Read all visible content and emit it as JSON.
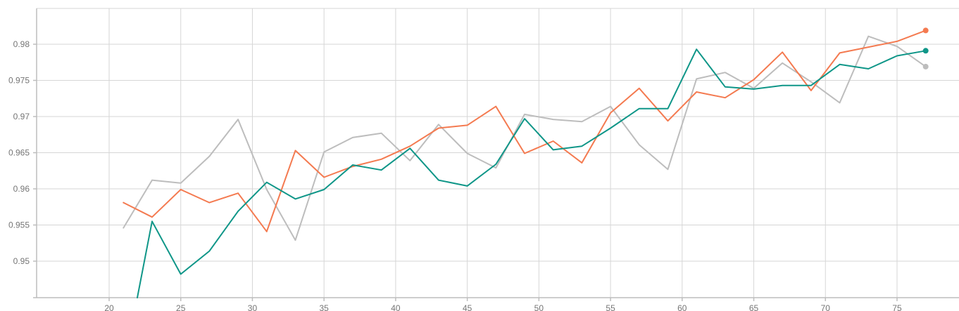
{
  "chart_data": {
    "type": "line",
    "title": "",
    "xlabel": "",
    "ylabel": "",
    "xlim": [
      15,
      79
    ],
    "ylim": [
      0.945,
      0.985
    ],
    "x_ticks": [
      "20",
      "25",
      "30",
      "35",
      "40",
      "45",
      "50",
      "55",
      "60",
      "65",
      "70",
      "75"
    ],
    "y_ticks": [
      "0.95",
      "0.955",
      "0.96",
      "0.965",
      "0.97",
      "0.975",
      "0.98"
    ],
    "grid": true,
    "legend": "none",
    "x": [
      21,
      23,
      25,
      27,
      29,
      31,
      33,
      35,
      37,
      39,
      41,
      43,
      45,
      47,
      49,
      51,
      53,
      55,
      57,
      59,
      61,
      63,
      65,
      67,
      69,
      71,
      73,
      75,
      77
    ],
    "series": [
      {
        "color": "#f47a50",
        "values": [
          0.9581,
          0.9561,
          0.9599,
          0.9581,
          0.9594,
          0.9541,
          0.9653,
          0.9616,
          0.9631,
          0.9641,
          0.9659,
          0.9684,
          0.9688,
          0.9714,
          0.9649,
          0.9666,
          0.9636,
          0.9705,
          0.9739,
          0.9694,
          0.9734,
          0.9726,
          0.9751,
          0.9789,
          0.9736,
          0.9788,
          0.9796,
          0.9804,
          0.9819
        ]
      },
      {
        "color": "#0f9688",
        "values": [
          null,
          0.9555,
          0.9482,
          0.9514,
          0.9569,
          0.9609,
          0.9586,
          0.9599,
          0.9633,
          0.9626,
          0.9656,
          0.9612,
          0.9604,
          0.9634,
          0.9697,
          0.9654,
          0.9659,
          0.9684,
          0.9711,
          0.9711,
          0.9793,
          0.9741,
          0.9738,
          0.9743,
          0.9743,
          0.9772,
          0.9766,
          0.9784,
          0.9791
        ]
      },
      {
        "color": "#bdbdbd",
        "values": [
          0.9546,
          0.9612,
          0.9608,
          0.9645,
          0.9696,
          0.9599,
          0.9529,
          0.9651,
          0.9671,
          0.9677,
          0.9639,
          0.9689,
          0.9649,
          0.9629,
          0.9703,
          0.9696,
          0.9693,
          0.9714,
          0.9661,
          0.9627,
          0.9752,
          0.9761,
          0.9739,
          0.9774,
          0.9748,
          0.9719,
          0.9811,
          0.9797,
          0.9769
        ]
      }
    ]
  }
}
